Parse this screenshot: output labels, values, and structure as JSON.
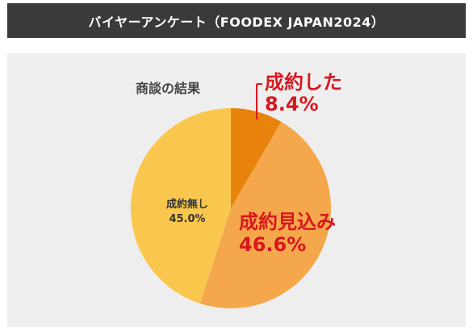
{
  "header": {
    "title": "バイヤーアンケート（FOODEX JAPAN2024）"
  },
  "colors": {
    "header_bg": "#3a3a3a",
    "panel_bg": "#eeeeee",
    "slice_success": "#e8830c",
    "slice_promising": "#f5a84b",
    "slice_none": "#fac74e",
    "label_red": "#d8171f"
  },
  "chart_data": {
    "type": "pie",
    "title": "商談の結果",
    "slices": [
      {
        "name": "成約した",
        "value": 8.4,
        "value_label": "8.4%",
        "color": "#e8830c"
      },
      {
        "name": "成約見込み",
        "value": 46.6,
        "value_label": "46.6%",
        "color": "#f5a84b"
      },
      {
        "name": "成約無し",
        "value": 45.0,
        "value_label": "45.0%",
        "color": "#fac74e"
      }
    ],
    "start_angle": "12 o'clock",
    "direction": "clockwise"
  }
}
